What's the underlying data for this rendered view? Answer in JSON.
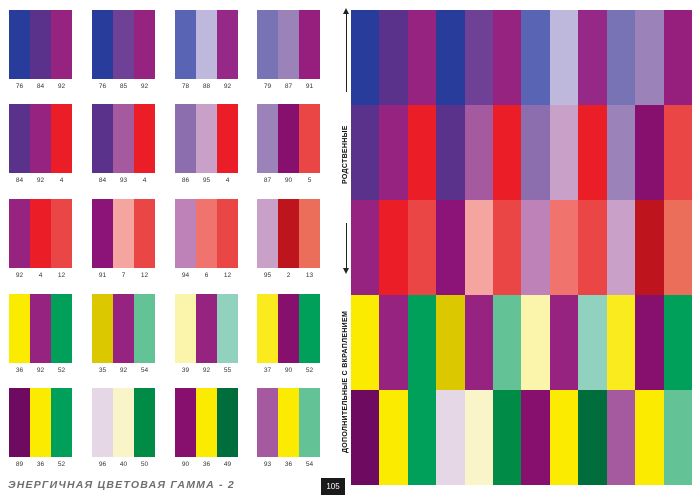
{
  "swatches": [
    {
      "colors": [
        "#283C9B",
        "#5A328C",
        "#96237F"
      ],
      "labels": [
        "76",
        "84",
        "92"
      ]
    },
    {
      "colors": [
        "#283C9B",
        "#6E4196",
        "#96237F"
      ],
      "labels": [
        "76",
        "85",
        "92"
      ]
    },
    {
      "colors": [
        "#5A64B4",
        "#BEB9DC",
        "#962887"
      ],
      "labels": [
        "78",
        "88",
        "92"
      ]
    },
    {
      "colors": [
        "#7873B4",
        "#9B82B9",
        "#961E7D"
      ],
      "labels": [
        "79",
        "87",
        "91"
      ]
    },
    {
      "colors": [
        "#5A328C",
        "#96237F",
        "#EB1E28"
      ],
      "labels": [
        "84",
        "92",
        "4"
      ]
    },
    {
      "colors": [
        "#5A328C",
        "#A55AA0",
        "#EB1E28"
      ],
      "labels": [
        "84",
        "93",
        "4"
      ]
    },
    {
      "colors": [
        "#8C6EAF",
        "#C8A0C8",
        "#EB1E28"
      ],
      "labels": [
        "86",
        "95",
        "4"
      ]
    },
    {
      "colors": [
        "#9B82B9",
        "#870F6E",
        "#EB4646"
      ],
      "labels": [
        "87",
        "90",
        "5"
      ]
    },
    {
      "colors": [
        "#96237F",
        "#EB1E28",
        "#EB4646"
      ],
      "labels": [
        "92",
        "4",
        "12"
      ]
    },
    {
      "colors": [
        "#8C1478",
        "#F5A5A0",
        "#EB4646"
      ],
      "labels": [
        "91",
        "7",
        "12"
      ]
    },
    {
      "colors": [
        "#BE82B9",
        "#F0736E",
        "#EB4646"
      ],
      "labels": [
        "94",
        "6",
        "12"
      ]
    },
    {
      "colors": [
        "#C8A0C8",
        "#BE141E",
        "#EB6E5A"
      ],
      "labels": [
        "95",
        "2",
        "13"
      ]
    },
    {
      "colors": [
        "#FAEB00",
        "#96237F",
        "#00A05A"
      ],
      "labels": [
        "36",
        "92",
        "52"
      ]
    },
    {
      "colors": [
        "#DCC800",
        "#96237F",
        "#64C396"
      ],
      "labels": [
        "35",
        "92",
        "54"
      ]
    },
    {
      "colors": [
        "#FAF5AA",
        "#96237F",
        "#91D2BE"
      ],
      "labels": [
        "39",
        "92",
        "55"
      ]
    },
    {
      "colors": [
        "#FAEB1E",
        "#870F6E",
        "#00A05A"
      ],
      "labels": [
        "37",
        "90",
        "52"
      ]
    },
    {
      "colors": [
        "#6E0A5F",
        "#FAEB00",
        "#00A05A"
      ],
      "labels": [
        "89",
        "36",
        "52"
      ]
    },
    {
      "colors": [
        "#E6D7E6",
        "#FAF5C8",
        "#008C46"
      ],
      "labels": [
        "96",
        "40",
        "50"
      ]
    },
    {
      "colors": [
        "#870F6E",
        "#FAEB00",
        "#006E3C"
      ],
      "labels": [
        "90",
        "36",
        "49"
      ]
    },
    {
      "colors": [
        "#A55AA0",
        "#FAEB00",
        "#64C396"
      ],
      "labels": [
        "93",
        "36",
        "54"
      ]
    }
  ],
  "big_grid": [
    [
      "#283C9B",
      "#5A328C",
      "#96237F",
      "#283C9B",
      "#6E4196",
      "#96237F",
      "#5A64B4",
      "#BEB9DC",
      "#962887",
      "#7873B4",
      "#9B82B9",
      "#961E7D"
    ],
    [
      "#5A328C",
      "#96237F",
      "#EB1E28",
      "#5A328C",
      "#A55AA0",
      "#EB1E28",
      "#8C6EAF",
      "#C8A0C8",
      "#EB1E28",
      "#9B82B9",
      "#870F6E",
      "#EB4646"
    ],
    [
      "#96237F",
      "#EB1E28",
      "#EB4646",
      "#8C1478",
      "#F5A5A0",
      "#EB4646",
      "#BE82B9",
      "#F0736E",
      "#EB4646",
      "#C8A0C8",
      "#BE141E",
      "#EB6E5A"
    ],
    [
      "#FAEB00",
      "#96237F",
      "#00A05A",
      "#DCC800",
      "#96237F",
      "#64C396",
      "#FAF5AA",
      "#96237F",
      "#91D2BE",
      "#FAEB1E",
      "#870F6E",
      "#00A05A"
    ],
    [
      "#6E0A5F",
      "#FAEB00",
      "#00A05A",
      "#E6D7E6",
      "#FAF5C8",
      "#008C46",
      "#870F6E",
      "#FAEB00",
      "#006E3C",
      "#A55AA0",
      "#FAEB00",
      "#64C396"
    ]
  ],
  "side_labels": {
    "related": "РОДСТВЕННЫЕ",
    "complementary": "ДОПОЛНИТЕЛЬНЫЕ С ВКРАПЛЕНИЕМ"
  },
  "footer": {
    "title": "ЭНЕРГИЧНАЯ ЦВЕТОВАЯ ГАММА - 2",
    "page_number": "105"
  }
}
